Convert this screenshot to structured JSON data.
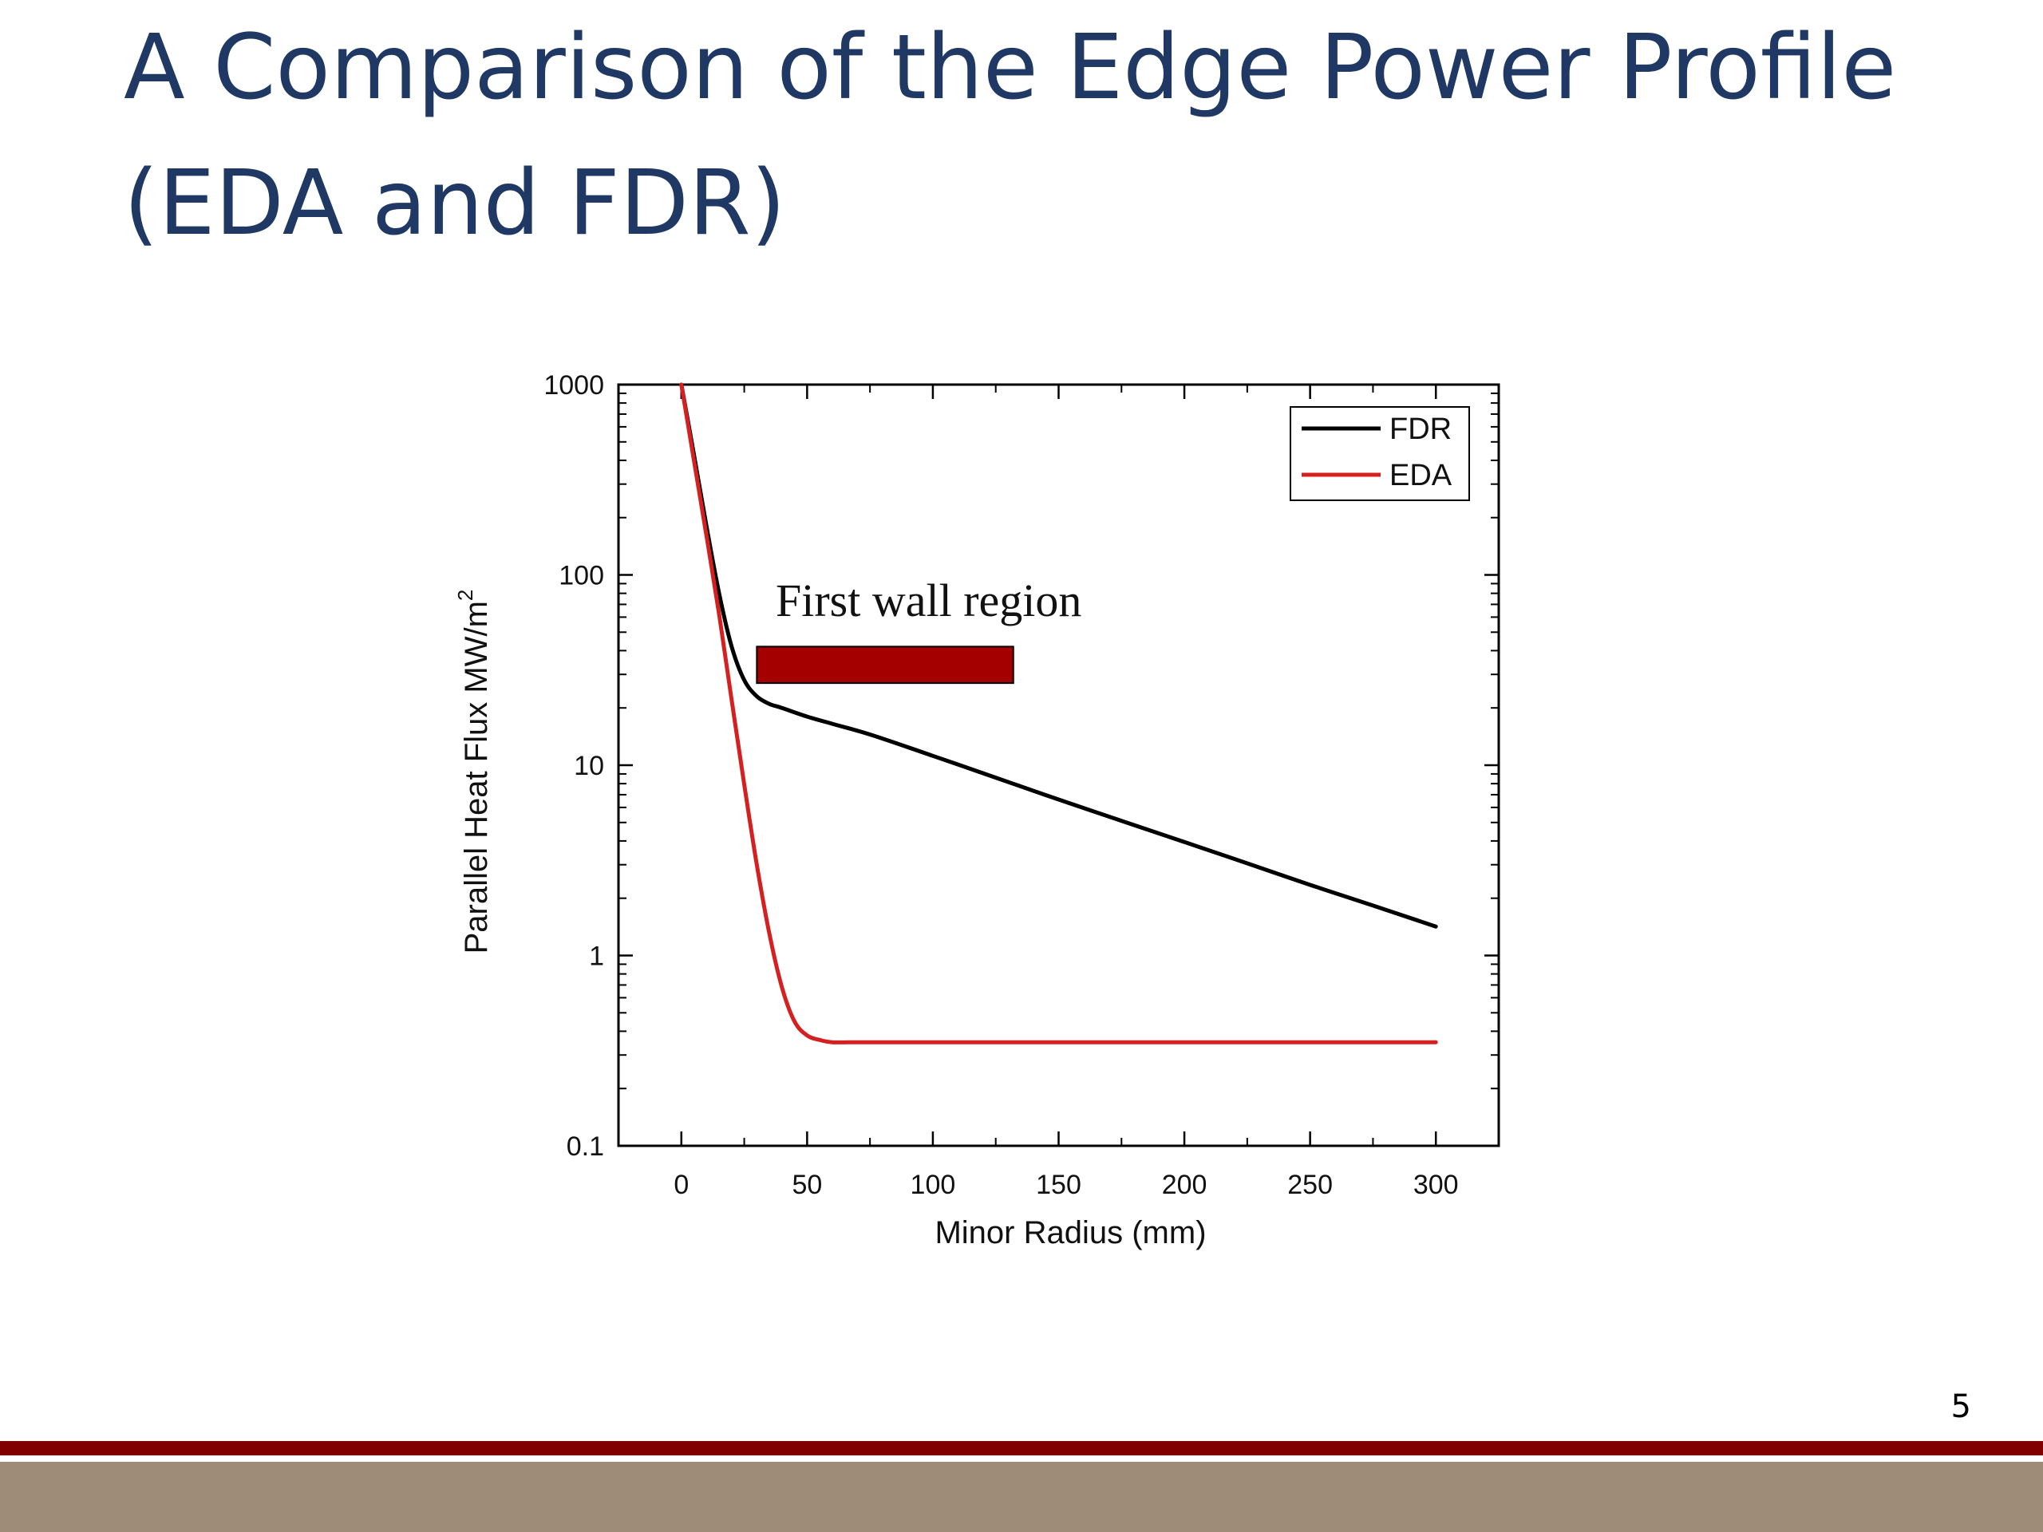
{
  "slide": {
    "title": "A Comparison of the Edge Power Profile (EDA and FDR)",
    "page_number": "5"
  },
  "colors": {
    "title": "#1f3864",
    "fdr": "#000000",
    "eda": "#d42020",
    "first_wall_fill": "#a50000",
    "footer_maroon": "#800000",
    "footer_tan": "#9e8b78"
  },
  "chart_data": {
    "type": "line",
    "xlabel": "Minor Radius (mm)",
    "ylabel": "Parallel Heat Flux MW/m",
    "ylabel_superscript": "2",
    "xlim": [
      -25,
      325
    ],
    "ylim": [
      0.1,
      1000
    ],
    "y_scale": "log",
    "x_ticks": [
      0,
      50,
      100,
      150,
      200,
      250,
      300
    ],
    "x_tick_labels": [
      "0",
      "50",
      "100",
      "150",
      "200",
      "250",
      "300"
    ],
    "y_ticks": [
      0.1,
      1,
      10,
      100,
      1000
    ],
    "y_tick_labels": [
      "0.1",
      "1",
      "10",
      "100",
      "1000"
    ],
    "grid": false,
    "legend_position": "top-right",
    "series": [
      {
        "name": "FDR",
        "color": "#000000",
        "x": [
          0,
          5,
          10,
          15,
          20,
          25,
          30,
          35,
          40,
          50,
          60,
          75,
          100,
          125,
          150,
          175,
          200,
          225,
          250,
          275,
          300
        ],
        "y": [
          1000,
          430,
          180,
          80,
          42,
          28,
          23,
          21,
          20,
          18,
          16.5,
          14.5,
          11.2,
          8.6,
          6.6,
          5.1,
          3.95,
          3.05,
          2.35,
          1.83,
          1.42
        ]
      },
      {
        "name": "EDA",
        "color": "#d42020",
        "x": [
          0,
          5,
          10,
          15,
          20,
          25,
          30,
          35,
          40,
          45,
          50,
          55,
          60,
          70,
          80,
          100,
          150,
          200,
          250,
          300
        ],
        "y": [
          1000,
          400,
          160,
          62,
          22,
          7.9,
          3.0,
          1.3,
          0.68,
          0.45,
          0.38,
          0.36,
          0.35,
          0.35,
          0.35,
          0.35,
          0.35,
          0.35,
          0.35,
          0.35
        ]
      }
    ],
    "annotations": [
      {
        "text": "First wall region",
        "x_range": [
          30,
          132
        ],
        "y_range": [
          27,
          42
        ]
      }
    ]
  }
}
